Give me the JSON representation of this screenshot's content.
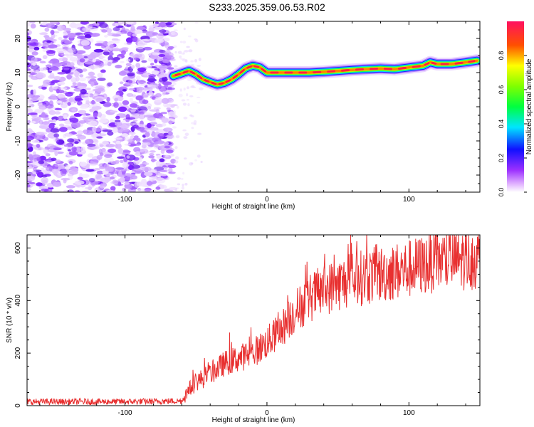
{
  "title": "S233.2025.359.06.53.R02",
  "chart_data": [
    {
      "type": "heatmap",
      "xlabel": "Height of straight line (km)",
      "ylabel": "Frequency (Hz)",
      "xlim": [
        -169,
        150
      ],
      "ylim": [
        -25,
        25
      ],
      "xticks": [
        -100,
        0,
        100
      ],
      "yticks": [
        -20,
        -10,
        0,
        10,
        20
      ],
      "colorbar": {
        "label": "Normalized spectral amplitude",
        "range": [
          0.0,
          1.0
        ],
        "ticks": [
          "0.0",
          "0.2",
          "0.4",
          "0.6",
          "0.8"
        ]
      },
      "ridge_line": {
        "description": "dominant frequency vs height",
        "x": [
          -66,
          -60,
          -55,
          -50,
          -45,
          -40,
          -35,
          -30,
          -25,
          -20,
          -15,
          -10,
          -5,
          0,
          10,
          20,
          30,
          40,
          50,
          60,
          70,
          80,
          90,
          100,
          110,
          115,
          120,
          130,
          140,
          148
        ],
        "y": [
          9.0,
          9.8,
          10.5,
          9.5,
          8.0,
          7.2,
          6.5,
          7.0,
          8.0,
          9.5,
          11.2,
          12.0,
          11.5,
          10.0,
          10.0,
          10.0,
          10.0,
          10.2,
          10.5,
          10.8,
          11.0,
          11.2,
          11.0,
          11.5,
          12.0,
          13.0,
          12.5,
          12.5,
          13.0,
          13.5
        ]
      }
    },
    {
      "type": "line",
      "xlabel": "Height of straight line (km)",
      "ylabel": "SNR (10 * v/v)",
      "xlim": [
        -169,
        150
      ],
      "ylim": [
        0,
        650
      ],
      "xticks": [
        -100,
        0,
        100
      ],
      "yticks": [
        0,
        200,
        400,
        600
      ],
      "series_color": "#e83030",
      "trend": {
        "x": [
          -169,
          -100,
          -60,
          -55,
          -50,
          -40,
          -30,
          -20,
          -10,
          0,
          10,
          20,
          30,
          40,
          60,
          80,
          100,
          120,
          150
        ],
        "y": [
          15,
          15,
          18,
          60,
          90,
          120,
          160,
          180,
          200,
          240,
          290,
          360,
          410,
          440,
          480,
          500,
          520,
          550,
          560
        ]
      }
    }
  ]
}
